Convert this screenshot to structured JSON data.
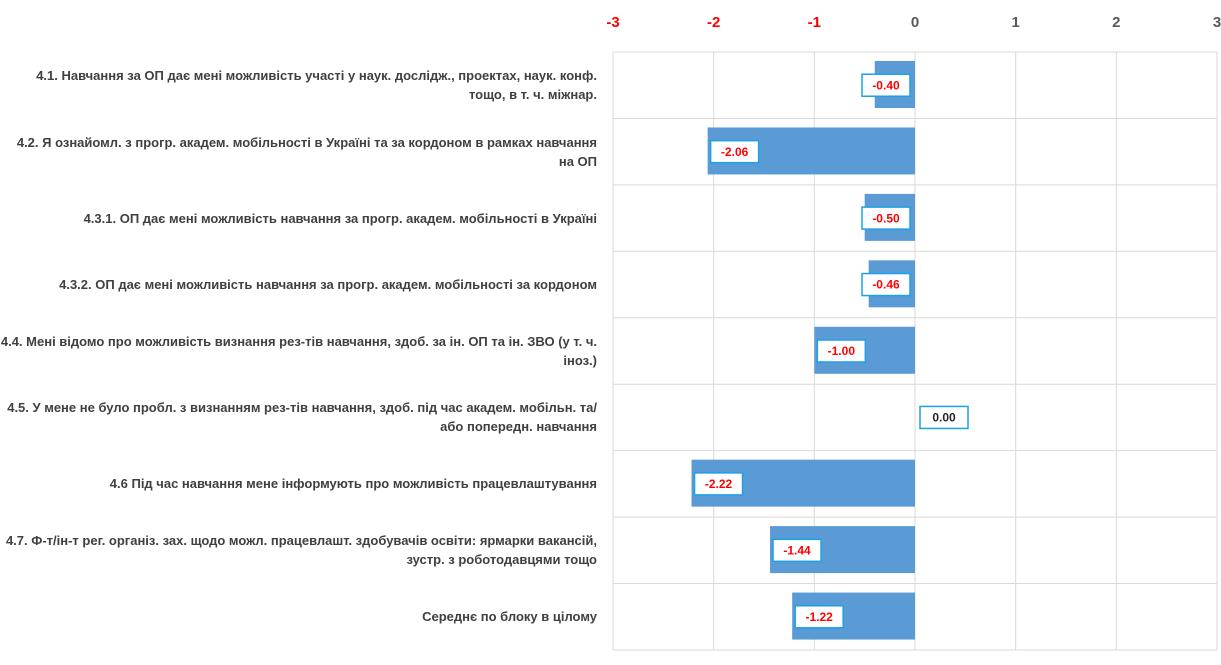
{
  "chart_data": {
    "type": "bar",
    "orientation": "horizontal",
    "categories": [
      "4.1. Навчання за ОП дає мені можливість участі у наук. дослідж., проектах, наук. конф. тощо, в т. ч. міжнар.",
      "4.2. Я ознайомл. з прогр. академ. мобільності в Україні та за кордоном в рамках навчання на ОП",
      "4.3.1. ОП дає мені можливість навчання за прогр. академ. мобільності в Україні",
      "4.3.2. ОП дає мені можливість навчання за прогр. академ. мобільності за кордоном",
      "4.4. Мені відомо про можливість визнання рез-тів навчання, здоб. за ін. ОП та ін. ЗВО (у т. ч. іноз.)",
      "4.5. У мене не було пробл. з визнанням рез-тів навчання, здоб. під час академ. мобільн. та/або попередн. навчання",
      "4.6 Під час навчання мене інформують про можливість працевлаштування",
      "4.7. Ф-т/ін-т рег. організ. зах. щодо можл. працевлашт. здобувачів освіти: ярмарки вакансій, зустр. з роботодавцями тощо",
      "Середнє по блоку в цілому"
    ],
    "values": [
      -0.4,
      -2.06,
      -0.5,
      -0.46,
      -1.0,
      0.0,
      -2.22,
      -1.44,
      -1.22
    ],
    "value_labels": [
      "-0.40",
      "-2.06",
      "-0.50",
      "-0.46",
      "-1.00",
      "0.00",
      "-2.22",
      "-1.44",
      "-1.22"
    ],
    "color": "#5b9bd5",
    "xlim": [
      -3,
      3
    ],
    "xticks": [
      -3,
      -2,
      -1,
      0,
      1,
      2,
      3
    ],
    "grid": true
  }
}
